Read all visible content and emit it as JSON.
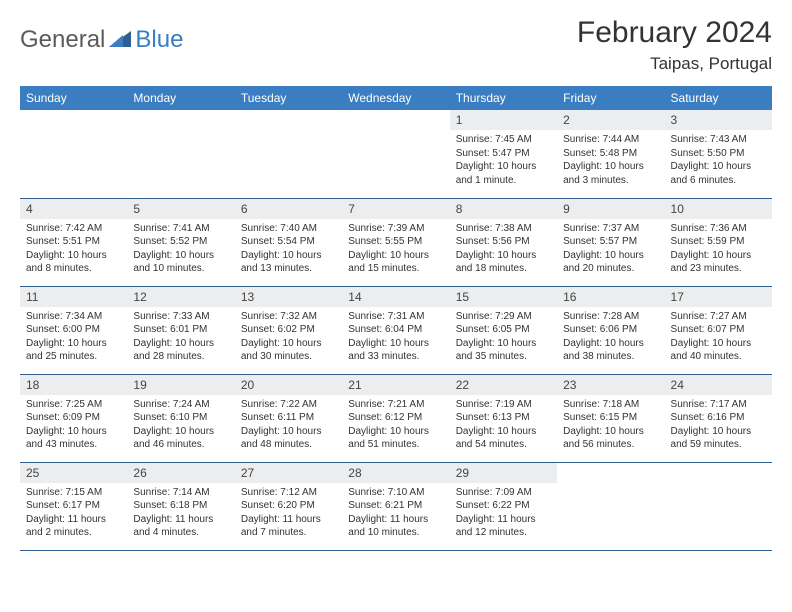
{
  "brand": {
    "part1": "General",
    "part2": "Blue"
  },
  "title": "February 2024",
  "location": "Taipas, Portugal",
  "colors": {
    "header_bg": "#3a7ec1",
    "header_text": "#ffffff",
    "daynum_bg": "#ecedee",
    "row_border": "#2f5e8f",
    "logo_gray": "#5b5b5b",
    "logo_blue": "#3a7ec1"
  },
  "weekdays": [
    "Sunday",
    "Monday",
    "Tuesday",
    "Wednesday",
    "Thursday",
    "Friday",
    "Saturday"
  ],
  "weeks": [
    [
      {
        "day": "",
        "sunrise": "",
        "sunset": "",
        "daylight": ""
      },
      {
        "day": "",
        "sunrise": "",
        "sunset": "",
        "daylight": ""
      },
      {
        "day": "",
        "sunrise": "",
        "sunset": "",
        "daylight": ""
      },
      {
        "day": "",
        "sunrise": "",
        "sunset": "",
        "daylight": ""
      },
      {
        "day": "1",
        "sunrise": "Sunrise: 7:45 AM",
        "sunset": "Sunset: 5:47 PM",
        "daylight": "Daylight: 10 hours and 1 minute."
      },
      {
        "day": "2",
        "sunrise": "Sunrise: 7:44 AM",
        "sunset": "Sunset: 5:48 PM",
        "daylight": "Daylight: 10 hours and 3 minutes."
      },
      {
        "day": "3",
        "sunrise": "Sunrise: 7:43 AM",
        "sunset": "Sunset: 5:50 PM",
        "daylight": "Daylight: 10 hours and 6 minutes."
      }
    ],
    [
      {
        "day": "4",
        "sunrise": "Sunrise: 7:42 AM",
        "sunset": "Sunset: 5:51 PM",
        "daylight": "Daylight: 10 hours and 8 minutes."
      },
      {
        "day": "5",
        "sunrise": "Sunrise: 7:41 AM",
        "sunset": "Sunset: 5:52 PM",
        "daylight": "Daylight: 10 hours and 10 minutes."
      },
      {
        "day": "6",
        "sunrise": "Sunrise: 7:40 AM",
        "sunset": "Sunset: 5:54 PM",
        "daylight": "Daylight: 10 hours and 13 minutes."
      },
      {
        "day": "7",
        "sunrise": "Sunrise: 7:39 AM",
        "sunset": "Sunset: 5:55 PM",
        "daylight": "Daylight: 10 hours and 15 minutes."
      },
      {
        "day": "8",
        "sunrise": "Sunrise: 7:38 AM",
        "sunset": "Sunset: 5:56 PM",
        "daylight": "Daylight: 10 hours and 18 minutes."
      },
      {
        "day": "9",
        "sunrise": "Sunrise: 7:37 AM",
        "sunset": "Sunset: 5:57 PM",
        "daylight": "Daylight: 10 hours and 20 minutes."
      },
      {
        "day": "10",
        "sunrise": "Sunrise: 7:36 AM",
        "sunset": "Sunset: 5:59 PM",
        "daylight": "Daylight: 10 hours and 23 minutes."
      }
    ],
    [
      {
        "day": "11",
        "sunrise": "Sunrise: 7:34 AM",
        "sunset": "Sunset: 6:00 PM",
        "daylight": "Daylight: 10 hours and 25 minutes."
      },
      {
        "day": "12",
        "sunrise": "Sunrise: 7:33 AM",
        "sunset": "Sunset: 6:01 PM",
        "daylight": "Daylight: 10 hours and 28 minutes."
      },
      {
        "day": "13",
        "sunrise": "Sunrise: 7:32 AM",
        "sunset": "Sunset: 6:02 PM",
        "daylight": "Daylight: 10 hours and 30 minutes."
      },
      {
        "day": "14",
        "sunrise": "Sunrise: 7:31 AM",
        "sunset": "Sunset: 6:04 PM",
        "daylight": "Daylight: 10 hours and 33 minutes."
      },
      {
        "day": "15",
        "sunrise": "Sunrise: 7:29 AM",
        "sunset": "Sunset: 6:05 PM",
        "daylight": "Daylight: 10 hours and 35 minutes."
      },
      {
        "day": "16",
        "sunrise": "Sunrise: 7:28 AM",
        "sunset": "Sunset: 6:06 PM",
        "daylight": "Daylight: 10 hours and 38 minutes."
      },
      {
        "day": "17",
        "sunrise": "Sunrise: 7:27 AM",
        "sunset": "Sunset: 6:07 PM",
        "daylight": "Daylight: 10 hours and 40 minutes."
      }
    ],
    [
      {
        "day": "18",
        "sunrise": "Sunrise: 7:25 AM",
        "sunset": "Sunset: 6:09 PM",
        "daylight": "Daylight: 10 hours and 43 minutes."
      },
      {
        "day": "19",
        "sunrise": "Sunrise: 7:24 AM",
        "sunset": "Sunset: 6:10 PM",
        "daylight": "Daylight: 10 hours and 46 minutes."
      },
      {
        "day": "20",
        "sunrise": "Sunrise: 7:22 AM",
        "sunset": "Sunset: 6:11 PM",
        "daylight": "Daylight: 10 hours and 48 minutes."
      },
      {
        "day": "21",
        "sunrise": "Sunrise: 7:21 AM",
        "sunset": "Sunset: 6:12 PM",
        "daylight": "Daylight: 10 hours and 51 minutes."
      },
      {
        "day": "22",
        "sunrise": "Sunrise: 7:19 AM",
        "sunset": "Sunset: 6:13 PM",
        "daylight": "Daylight: 10 hours and 54 minutes."
      },
      {
        "day": "23",
        "sunrise": "Sunrise: 7:18 AM",
        "sunset": "Sunset: 6:15 PM",
        "daylight": "Daylight: 10 hours and 56 minutes."
      },
      {
        "day": "24",
        "sunrise": "Sunrise: 7:17 AM",
        "sunset": "Sunset: 6:16 PM",
        "daylight": "Daylight: 10 hours and 59 minutes."
      }
    ],
    [
      {
        "day": "25",
        "sunrise": "Sunrise: 7:15 AM",
        "sunset": "Sunset: 6:17 PM",
        "daylight": "Daylight: 11 hours and 2 minutes."
      },
      {
        "day": "26",
        "sunrise": "Sunrise: 7:14 AM",
        "sunset": "Sunset: 6:18 PM",
        "daylight": "Daylight: 11 hours and 4 minutes."
      },
      {
        "day": "27",
        "sunrise": "Sunrise: 7:12 AM",
        "sunset": "Sunset: 6:20 PM",
        "daylight": "Daylight: 11 hours and 7 minutes."
      },
      {
        "day": "28",
        "sunrise": "Sunrise: 7:10 AM",
        "sunset": "Sunset: 6:21 PM",
        "daylight": "Daylight: 11 hours and 10 minutes."
      },
      {
        "day": "29",
        "sunrise": "Sunrise: 7:09 AM",
        "sunset": "Sunset: 6:22 PM",
        "daylight": "Daylight: 11 hours and 12 minutes."
      },
      {
        "day": "",
        "sunrise": "",
        "sunset": "",
        "daylight": ""
      },
      {
        "day": "",
        "sunrise": "",
        "sunset": "",
        "daylight": ""
      }
    ]
  ]
}
